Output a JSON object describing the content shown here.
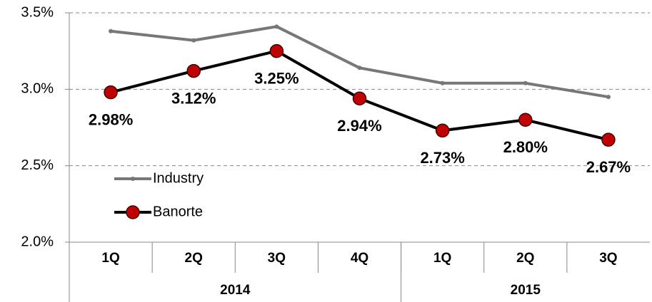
{
  "chart_data": {
    "type": "line",
    "categories": [
      "1Q",
      "2Q",
      "3Q",
      "4Q",
      "1Q",
      "2Q",
      "3Q"
    ],
    "groups": [
      {
        "label": "2014",
        "span": 4
      },
      {
        "label": "2015",
        "span": 3
      }
    ],
    "series": [
      {
        "name": "Industry",
        "color": "#777777",
        "values": [
          3.38,
          3.32,
          3.41,
          3.14,
          3.04,
          3.04,
          2.95
        ]
      },
      {
        "name": "Banorte",
        "color": "#000000",
        "marker_color": "#c00000",
        "values": [
          2.98,
          3.12,
          3.25,
          2.94,
          2.73,
          2.8,
          2.67
        ],
        "value_labels": [
          "2.98%",
          "3.12%",
          "3.25%",
          "2.94%",
          "2.73%",
          "2.80%",
          "2.67%"
        ]
      }
    ],
    "ylim": [
      2.0,
      3.5
    ],
    "yticks": [
      {
        "value": 2.0,
        "label": "2.0%"
      },
      {
        "value": 2.5,
        "label": "2.5%"
      },
      {
        "value": 3.0,
        "label": "3.0%"
      },
      {
        "value": 3.5,
        "label": "3.5%"
      }
    ],
    "grid": true
  }
}
